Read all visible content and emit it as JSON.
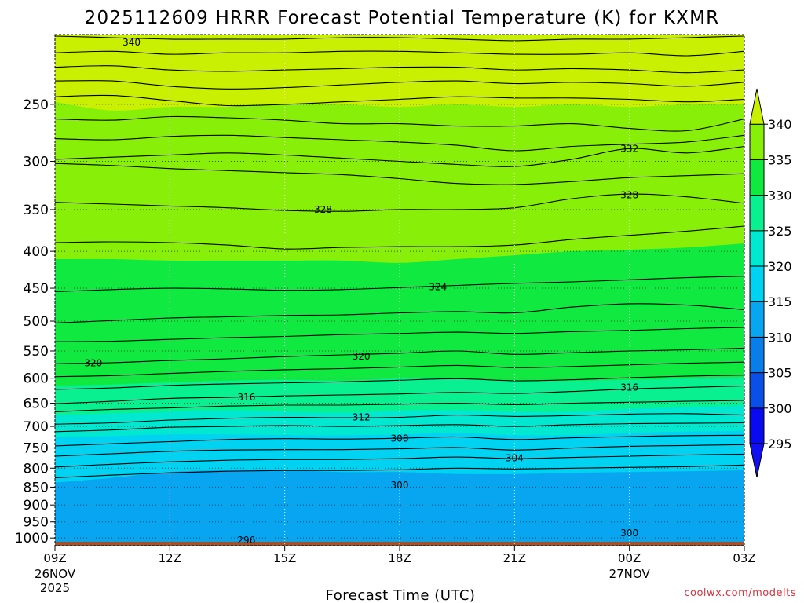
{
  "chart_data": {
    "type": "contour",
    "title": "2025112609 HRRR Forecast Potential Temperature (K) for KXMR",
    "xlabel": "Forecast Time (UTC)",
    "ylabel": "",
    "y_scale": "log",
    "ylim": [
      1025,
      200
    ],
    "y_ticks": [
      250,
      300,
      350,
      400,
      450,
      500,
      550,
      600,
      650,
      700,
      750,
      800,
      850,
      900,
      950,
      1000
    ],
    "x": {
      "start": "2025-11-26 09Z",
      "end": "2025-11-27 03Z"
    },
    "x_ticks": [
      "09Z",
      "12Z",
      "15Z",
      "18Z",
      "21Z",
      "00Z",
      "03Z"
    ],
    "x_tick_dates": {
      "09Z": [
        "26NOV",
        "2025"
      ],
      "00Z": [
        "27NOV"
      ]
    },
    "grid": true,
    "colorbar": {
      "ticks": [
        295,
        300,
        305,
        310,
        315,
        320,
        325,
        330,
        335,
        340
      ],
      "bins": [
        {
          "range": [
            null,
            295
          ],
          "color": "#1010f0"
        },
        {
          "range": [
            295,
            300
          ],
          "color": "#0a0aee"
        },
        {
          "range": [
            300,
            305
          ],
          "color": "#0a50e6"
        },
        {
          "range": [
            305,
            310
          ],
          "color": "#0a7ee8"
        },
        {
          "range": [
            310,
            315
          ],
          "color": "#08a6f0"
        },
        {
          "range": [
            315,
            320
          ],
          "color": "#00d2f2"
        },
        {
          "range": [
            320,
            325
          ],
          "color": "#00e8d0"
        },
        {
          "range": [
            325,
            330
          ],
          "color": "#08f090"
        },
        {
          "range": [
            330,
            335
          ],
          "color": "#10ea40"
        },
        {
          "range": [
            335,
            340
          ],
          "color": "#88f008"
        },
        {
          "range": [
            340,
            null
          ],
          "color": "#c8f000"
        }
      ]
    },
    "ground_color": "#a0522d",
    "fill_bands": [
      {
        "theta": 340,
        "pressure": [
          248,
          255,
          252,
          252,
          250,
          250,
          252,
          250,
          252,
          250,
          252,
          250,
          250
        ]
      },
      {
        "theta": 335,
        "pressure": [
          410,
          410,
          412,
          412,
          412,
          412,
          415,
          410,
          405,
          400,
          398,
          395,
          390
        ]
      },
      {
        "theta": 330,
        "pressure": [
          615,
          612,
          608,
          605,
          603,
          605,
          600,
          600,
          605,
          605,
          603,
          600,
          598
        ]
      },
      {
        "theta": 325,
        "pressure": [
          675,
          672,
          668,
          665,
          668,
          670,
          666,
          665,
          668,
          668,
          662,
          658,
          655
        ]
      },
      {
        "theta": 320,
        "pressure": [
          725,
          722,
          718,
          718,
          720,
          720,
          718,
          715,
          720,
          720,
          715,
          712,
          710
        ]
      },
      {
        "theta": 315,
        "pressure": [
          838,
          825,
          810,
          805,
          805,
          810,
          810,
          815,
          815,
          812,
          810,
          808,
          805
        ]
      },
      {
        "theta": 310,
        "pressure": [
          1025,
          1025,
          1025,
          1025,
          1025,
          1025,
          1025,
          1025,
          1025,
          1025,
          1025,
          1025,
          1025
        ]
      }
    ],
    "band_x_hours": [
      0,
      1.5,
      3,
      4.5,
      6,
      7.5,
      9,
      10.5,
      12,
      13.5,
      15,
      16.5,
      18
    ],
    "contours": [
      {
        "theta": 340,
        "pressure": [
          201,
          202,
          203,
          203,
          203,
          202,
          202,
          203,
          204,
          203,
          203,
          202,
          201
        ]
      },
      {
        "theta": 339,
        "pressure": [
          212,
          211,
          213,
          212,
          212,
          211,
          211,
          212,
          213,
          213,
          212,
          214,
          211
        ]
      },
      {
        "theta": 338,
        "pressure": [
          222,
          221,
          224,
          225,
          224,
          223,
          222,
          222,
          224,
          223,
          224,
          226,
          224
        ]
      },
      {
        "theta": 337,
        "pressure": [
          232,
          232,
          236,
          238,
          237,
          235,
          233,
          232,
          234,
          233,
          234,
          236,
          233
        ]
      },
      {
        "theta": 336,
        "pressure": [
          244,
          243,
          247,
          251,
          250,
          248,
          246,
          244,
          245,
          245,
          246,
          248,
          246
        ]
      },
      {
        "theta": 334,
        "pressure": [
          262,
          263,
          260,
          261,
          263,
          266,
          266,
          268,
          268,
          266,
          270,
          272,
          262
        ]
      },
      {
        "theta": 333,
        "pressure": [
          279,
          280,
          277,
          276,
          278,
          280,
          282,
          285,
          290,
          286,
          284,
          282,
          276
        ]
      },
      {
        "theta": 332,
        "pressure": [
          298,
          296,
          294,
          292,
          294,
          297,
          300,
          303,
          305,
          298,
          288,
          292,
          286
        ]
      },
      {
        "theta": 331,
        "pressure": [
          302,
          304,
          307,
          309,
          311,
          313,
          317,
          322,
          323,
          320,
          316,
          314,
          312
        ]
      },
      {
        "theta": 328,
        "pressure": [
          342,
          344,
          346,
          348,
          351,
          352,
          350,
          350,
          348,
          338,
          333,
          336,
          343
        ]
      },
      {
        "theta": 326,
        "pressure": [
          389,
          388,
          389,
          392,
          397,
          395,
          394,
          394,
          392,
          385,
          380,
          375,
          369
        ]
      },
      {
        "theta": 324,
        "pressure": [
          455,
          452,
          450,
          451,
          453,
          452,
          449,
          446,
          443,
          441,
          438,
          435,
          433
        ]
      },
      {
        "theta": 323,
        "pressure": [
          503,
          499,
          495,
          493,
          491,
          490,
          487,
          485,
          487,
          478,
          473,
          475,
          482
        ]
      },
      {
        "theta": 322,
        "pressure": [
          534,
          533,
          530,
          527,
          525,
          522,
          520,
          518,
          520,
          517,
          515,
          512,
          510
        ]
      },
      {
        "theta": 320,
        "pressure": [
          573,
          571,
          567,
          564,
          560,
          557,
          554,
          550,
          556,
          553,
          550,
          548,
          545
        ]
      },
      {
        "theta": 319,
        "pressure": [
          597,
          595,
          591,
          587,
          584,
          582,
          579,
          576,
          580,
          578,
          575,
          572,
          570
        ]
      },
      {
        "theta": 318,
        "pressure": [
          622,
          619,
          614,
          611,
          609,
          607,
          604,
          601,
          605,
          603,
          599,
          596,
          594
        ]
      },
      {
        "theta": 316,
        "pressure": [
          651,
          646,
          640,
          638,
          635,
          633,
          631,
          628,
          630,
          626,
          621,
          618,
          615
        ]
      },
      {
        "theta": 314,
        "pressure": [
          668,
          663,
          660,
          656,
          654,
          654,
          652,
          650,
          653,
          650,
          648,
          646,
          644
        ]
      },
      {
        "theta": 312,
        "pressure": [
          695,
          692,
          686,
          682,
          680,
          681,
          680,
          675,
          678,
          676,
          673,
          672,
          675
        ]
      },
      {
        "theta": 310,
        "pressure": [
          712,
          708,
          702,
          700,
          698,
          700,
          698,
          696,
          700,
          696,
          694,
          693,
          692
        ]
      },
      {
        "theta": 308,
        "pressure": [
          745,
          740,
          735,
          730,
          728,
          729,
          727,
          724,
          730,
          726,
          723,
          721,
          720
        ]
      },
      {
        "theta": 306,
        "pressure": [
          770,
          764,
          758,
          755,
          754,
          754,
          752,
          749,
          755,
          750,
          746,
          744,
          742
        ]
      },
      {
        "theta": 304,
        "pressure": [
          797,
          790,
          784,
          780,
          778,
          778,
          776,
          772,
          776,
          773,
          770,
          767,
          765
        ]
      },
      {
        "theta": 302,
        "pressure": [
          825,
          818,
          812,
          808,
          806,
          806,
          804,
          800,
          802,
          800,
          798,
          796,
          792
        ]
      }
    ],
    "contour_labels": [
      {
        "text": "340",
        "hour": 2.0,
        "pressure": 205
      },
      {
        "text": "332",
        "hour": 15.0,
        "pressure": 288
      },
      {
        "text": "328",
        "hour": 7.0,
        "pressure": 350
      },
      {
        "text": "328",
        "hour": 15.0,
        "pressure": 334
      },
      {
        "text": "324",
        "hour": 10.0,
        "pressure": 448
      },
      {
        "text": "320",
        "hour": 1.0,
        "pressure": 572
      },
      {
        "text": "320",
        "hour": 8.0,
        "pressure": 560
      },
      {
        "text": "316",
        "hour": 5.0,
        "pressure": 638
      },
      {
        "text": "316",
        "hour": 15.0,
        "pressure": 618
      },
      {
        "text": "312",
        "hour": 8.0,
        "pressure": 680
      },
      {
        "text": "308",
        "hour": 9.0,
        "pressure": 728
      },
      {
        "text": "304",
        "hour": 12.0,
        "pressure": 775
      },
      {
        "text": "300",
        "hour": 9.0,
        "pressure": 845
      },
      {
        "text": "300",
        "hour": 15.0,
        "pressure": 985
      },
      {
        "text": "296",
        "hour": 5.0,
        "pressure": 1007
      }
    ]
  },
  "footer": {
    "credit": "coolwx.com/modelts"
  }
}
